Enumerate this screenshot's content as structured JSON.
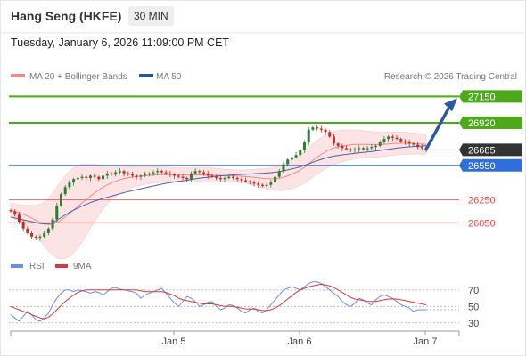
{
  "header": {
    "title": "Hang Seng (HKFE)",
    "timeframe": "30 MIN",
    "datetime": "Tuesday, January 6, 2026 11:09:00 PM CET"
  },
  "legend": {
    "ma20_bb": "MA 20 + Bollinger Bands",
    "ma50": "MA 50",
    "credit": "Research © 2026 Trading Central",
    "rsi": "RSI",
    "rsi_ma": "9MA"
  },
  "colors": {
    "resistance": "#4caa1a",
    "pivot": "#2f6fdc",
    "support": "#e64a4a",
    "price_tag": "#333333",
    "ma20": "#f08a8a",
    "ma50": "#4a5fa8",
    "bollinger_fill": "#fde4e4",
    "candle_up": "#2e7d32",
    "candle_down": "#c62828",
    "arrow": "#2b5b9e",
    "rsi": "#6b8fe0",
    "rsi_ma": "#d63a3a"
  },
  "chart_data": [
    {
      "type": "candlestick",
      "ylim": [
        25820,
        27230
      ],
      "x_ticks": [
        "Jan 5",
        "Jan 6",
        "Jan 7"
      ],
      "levels": [
        {
          "value": 27150,
          "label": "27150",
          "kind": "resistance"
        },
        {
          "value": 26920,
          "label": "26920",
          "kind": "resistance"
        },
        {
          "value": 26685,
          "label": "26685",
          "kind": "price"
        },
        {
          "value": 26550,
          "label": "26550",
          "kind": "pivot"
        },
        {
          "value": 26250,
          "label": "26250",
          "kind": "support"
        },
        {
          "value": 26050,
          "label": "26050",
          "kind": "support"
        }
      ],
      "close": [
        26150,
        26120,
        26060,
        26000,
        25960,
        25930,
        25920,
        25930,
        25960,
        26000,
        26080,
        26200,
        26300,
        26360,
        26400,
        26430,
        26440,
        26450,
        26440,
        26460,
        26450,
        26430,
        26460,
        26480,
        26470,
        26490,
        26500,
        26480,
        26470,
        26460,
        26450,
        26460,
        26470,
        26480,
        26490,
        26500,
        26490,
        26480,
        26470,
        26460,
        26450,
        26440,
        26430,
        26480,
        26500,
        26490,
        26480,
        26460,
        26450,
        26440,
        26430,
        26440,
        26450,
        26440,
        26430,
        26420,
        26410,
        26400,
        26390,
        26380,
        26370,
        26380,
        26400,
        26450,
        26500,
        26560,
        26600,
        26620,
        26640,
        26680,
        26750,
        26860,
        26880,
        26870,
        26860,
        26840,
        26800,
        26740,
        26720,
        26700,
        26690,
        26680,
        26690,
        26700,
        26690,
        26700,
        26710,
        26720,
        26750,
        26780,
        26800,
        26790,
        26780,
        26760,
        26750,
        26740,
        26730,
        26710,
        26700,
        26690
      ],
      "ma50": [
        26100,
        26092,
        26084,
        26076,
        26068,
        26060,
        26052,
        26044,
        26040,
        26041,
        26052,
        26072,
        26095,
        26118,
        26140,
        26160,
        26178,
        26195,
        26210,
        26225,
        26238,
        26250,
        26262,
        26272,
        26282,
        26292,
        26302,
        26312,
        26322,
        26330,
        26338,
        26346,
        26354,
        26362,
        26370,
        26378,
        26386,
        26393,
        26399,
        26405,
        26411,
        26416,
        26421,
        26427,
        26433,
        26438,
        26443,
        26447,
        26451,
        26455,
        26458,
        26461,
        26464,
        26467,
        26469,
        26471,
        26473,
        26475,
        26477,
        26479,
        26481,
        26483,
        26486,
        26490,
        26495,
        26502,
        26510,
        26518,
        26527,
        26537,
        26549,
        26563,
        26577,
        26590,
        26602,
        26613,
        26622,
        26630,
        26636,
        26641,
        26646,
        26650,
        26655,
        26659,
        26663,
        26667,
        26671,
        26675,
        26680,
        26685,
        26690,
        26695,
        26700,
        26704,
        26708,
        26711,
        26714,
        26716,
        26718,
        26720
      ],
      "ma20": [
        26160,
        26150,
        26138,
        26124,
        26108,
        26090,
        26072,
        26054,
        26040,
        26034,
        26038,
        26052,
        26074,
        26100,
        26130,
        26160,
        26192,
        26222,
        26252,
        26282,
        26310,
        26336,
        26360,
        26380,
        26398,
        26412,
        26424,
        26434,
        26442,
        26448,
        26452,
        26456,
        26460,
        26463,
        26466,
        26468,
        26469,
        26470,
        26470,
        26470,
        26469,
        26468,
        26466,
        26466,
        26467,
        26467,
        26467,
        26466,
        26465,
        26464,
        26462,
        26461,
        26460,
        26459,
        26457,
        26455,
        26452,
        26449,
        26445,
        26441,
        26437,
        26434,
        26433,
        26434,
        26438,
        26446,
        26458,
        26472,
        26489,
        26509,
        26533,
        26563,
        26593,
        26620,
        26645,
        26668,
        26687,
        26701,
        26711,
        26719,
        26725,
        26729,
        26732,
        26733,
        26733,
        26733,
        26732,
        26731,
        26731,
        26733,
        26736,
        26739,
        26741,
        26742,
        26742,
        26741,
        26740,
        26738,
        26735,
        26731
      ],
      "bb_width": [
        60,
        65,
        70,
        80,
        95,
        110,
        130,
        160,
        190,
        230,
        270,
        310,
        340,
        360,
        370,
        370,
        360,
        340,
        310,
        280,
        250,
        220,
        190,
        170,
        150,
        135,
        120,
        110,
        100,
        90,
        85,
        80,
        76,
        72,
        70,
        68,
        66,
        64,
        62,
        60,
        60,
        60,
        62,
        64,
        66,
        66,
        66,
        64,
        62,
        60,
        58,
        56,
        54,
        52,
        52,
        54,
        58,
        64,
        70,
        78,
        84,
        90,
        96,
        102,
        108,
        114,
        120,
        126,
        130,
        134,
        138,
        142,
        145,
        147,
        148,
        148,
        147,
        145,
        142,
        138,
        134,
        130,
        126,
        122,
        118,
        115,
        112,
        110,
        108,
        106,
        104,
        102,
        100,
        98,
        96,
        94,
        92,
        90,
        88,
        86
      ]
    },
    {
      "type": "line",
      "title": "RSI",
      "ylim": [
        20,
        85
      ],
      "y_ticks": [
        70,
        50,
        30
      ],
      "series": [
        {
          "name": "RSI",
          "values": [
            40,
            36,
            32,
            38,
            44,
            40,
            34,
            32,
            36,
            42,
            52,
            60,
            66,
            70,
            70,
            68,
            70,
            69,
            68,
            66,
            68,
            67,
            64,
            68,
            72,
            73,
            71,
            70,
            69,
            68,
            66,
            60,
            64,
            66,
            68,
            70,
            72,
            66,
            60,
            54,
            50,
            56,
            62,
            60,
            56,
            50,
            52,
            55,
            56,
            50,
            46,
            48,
            52,
            51,
            48,
            44,
            42,
            46,
            48,
            44,
            42,
            46,
            52,
            58,
            64,
            70,
            72,
            74,
            72,
            70,
            74,
            78,
            80,
            80,
            78,
            74,
            70,
            66,
            62,
            56,
            52,
            50,
            54,
            60,
            58,
            54,
            52,
            58,
            62,
            64,
            62,
            60,
            56,
            52,
            50,
            48,
            44,
            46,
            46,
            46
          ]
        },
        {
          "name": "9MA",
          "values": [
            50,
            48,
            46,
            44,
            42,
            40,
            38,
            36,
            35,
            37,
            41,
            46,
            51,
            56,
            60,
            64,
            67,
            69,
            70,
            70,
            70,
            70,
            70,
            70,
            70,
            70,
            70,
            70,
            70,
            70,
            70,
            69,
            68,
            68,
            68,
            68,
            68,
            67,
            65,
            63,
            60,
            58,
            57,
            56,
            55,
            54,
            53,
            53,
            53,
            52,
            51,
            50,
            50,
            50,
            49,
            48,
            47,
            47,
            47,
            46,
            45,
            45,
            46,
            48,
            51,
            55,
            59,
            63,
            67,
            70,
            72,
            74,
            75,
            76,
            77,
            76,
            75,
            73,
            70,
            67,
            64,
            61,
            59,
            58,
            57,
            56,
            56,
            56,
            57,
            58,
            59,
            59,
            59,
            58,
            57,
            56,
            55,
            54,
            53,
            52
          ]
        }
      ]
    }
  ]
}
